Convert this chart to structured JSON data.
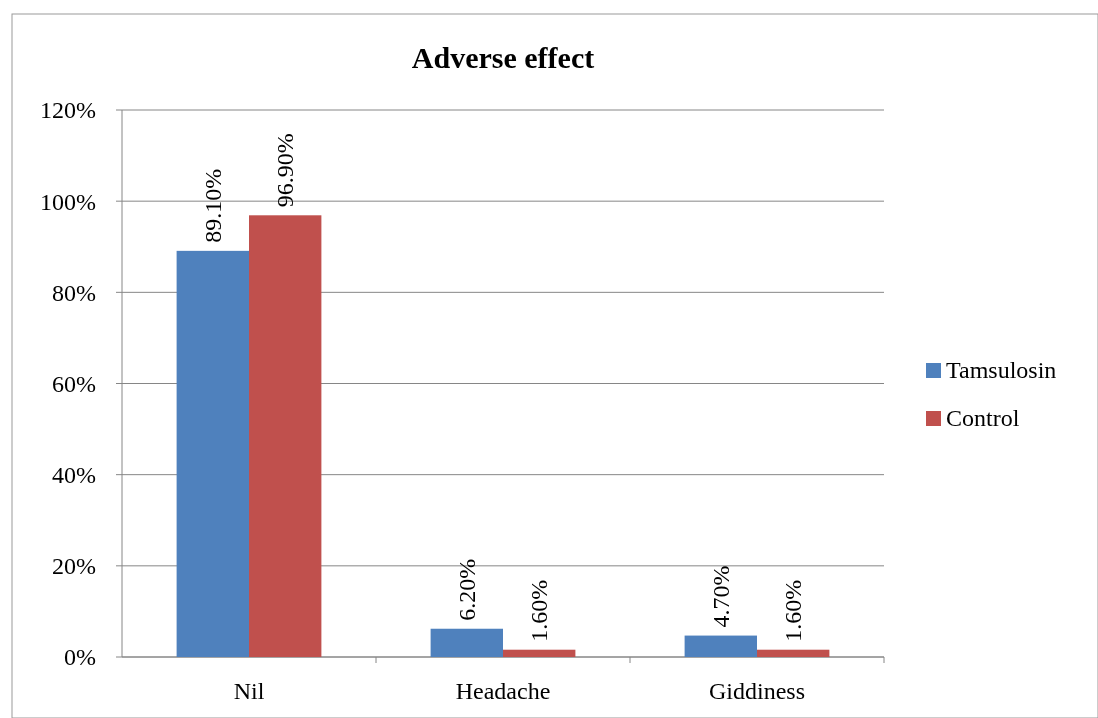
{
  "chart_data": {
    "type": "bar",
    "title": "Adverse effect",
    "categories": [
      "Nil",
      "Headache",
      "Giddiness"
    ],
    "series": [
      {
        "name": "Tamsulosin",
        "color": "#4f81bd",
        "values": [
          89.1,
          6.2,
          4.7
        ],
        "value_labels": [
          "89.10%",
          "6.20%",
          "4.70%"
        ]
      },
      {
        "name": "Control",
        "color": "#c0504d",
        "values": [
          96.9,
          1.6,
          1.6
        ],
        "value_labels": [
          "96.90%",
          "1.60%",
          "1.60%"
        ]
      }
    ],
    "ylim": [
      0,
      120
    ],
    "yticks": [
      {
        "value": 0,
        "label": "0%"
      },
      {
        "value": 20,
        "label": "20%"
      },
      {
        "value": 40,
        "label": "40%"
      },
      {
        "value": 60,
        "label": "60%"
      },
      {
        "value": 80,
        "label": "80%"
      },
      {
        "value": 100,
        "label": "100%"
      },
      {
        "value": 120,
        "label": "120%"
      }
    ],
    "grid": "y",
    "legend": "right"
  }
}
